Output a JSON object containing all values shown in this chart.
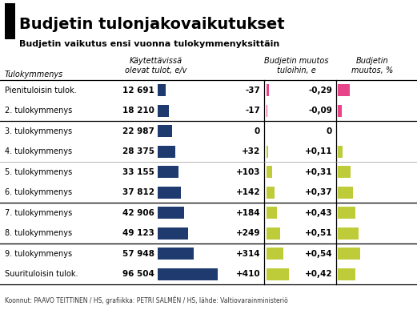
{
  "title": "Budjetin tulonjakovaikutukset",
  "subtitle": "Budjetin vaikutus ensi vuonna tulokymmenyksittäin",
  "footer": "Koonnut: PAAVO TEITTINEN / HS, grafiikka: PETRI SALMÉN / HS, lähde: Valtiovarainministeriö",
  "col_header0": "Käytettävissä\nolevat tulot, e/v",
  "col_header1": "Budjetin muutos\ntuloihin, e",
  "col_header2": "Budjetin\nmuutos, %",
  "row_label_header": "Tulokymmenys",
  "rows": [
    {
      "label": "Pienituloisin tulok.",
      "income": 12691,
      "income_str": "12 691",
      "change_e": -37,
      "change_e_str": "-37",
      "change_pct": -0.29,
      "change_pct_str": "-0,29"
    },
    {
      "label": "2. tulokymmenys",
      "income": 18210,
      "income_str": "18 210",
      "change_e": -17,
      "change_e_str": "-17",
      "change_pct": -0.09,
      "change_pct_str": "-0,09"
    },
    {
      "label": "3. tulokymmenys",
      "income": 22987,
      "income_str": "22 987",
      "change_e": 0,
      "change_e_str": "0",
      "change_pct": 0.0,
      "change_pct_str": "0"
    },
    {
      "label": "4. tulokymmenys",
      "income": 28375,
      "income_str": "28 375",
      "change_e": 32,
      "change_e_str": "+32",
      "change_pct": 0.11,
      "change_pct_str": "+0,11"
    },
    {
      "label": "5. tulokymmenys",
      "income": 33155,
      "income_str": "33 155",
      "change_e": 103,
      "change_e_str": "+103",
      "change_pct": 0.31,
      "change_pct_str": "+0,31"
    },
    {
      "label": "6. tulokymmenys",
      "income": 37812,
      "income_str": "37 812",
      "change_e": 142,
      "change_e_str": "+142",
      "change_pct": 0.37,
      "change_pct_str": "+0,37"
    },
    {
      "label": "7. tulokymmenys",
      "income": 42906,
      "income_str": "42 906",
      "change_e": 184,
      "change_e_str": "+184",
      "change_pct": 0.43,
      "change_pct_str": "+0,43"
    },
    {
      "label": "8. tulokymmenys",
      "income": 49123,
      "income_str": "49 123",
      "change_e": 249,
      "change_e_str": "+249",
      "change_pct": 0.51,
      "change_pct_str": "+0,51"
    },
    {
      "label": "9. tulokymmenys",
      "income": 57948,
      "income_str": "57 948",
      "change_e": 314,
      "change_e_str": "+314",
      "change_pct": 0.54,
      "change_pct_str": "+0,54"
    },
    {
      "label": "Suurituloisin tulok.",
      "income": 96504,
      "income_str": "96 504",
      "change_e": 410,
      "change_e_str": "+410",
      "change_pct": 0.42,
      "change_pct_str": "+0,42"
    }
  ],
  "bar_color_income": "#1e3a6e",
  "bar_color_pos": "#bfcc3a",
  "bar_color_neg": "#e8448a",
  "bg_color": "#ffffff",
  "separator_rows_thick": [
    2,
    6,
    8
  ],
  "separator_rows_light": [
    4
  ]
}
